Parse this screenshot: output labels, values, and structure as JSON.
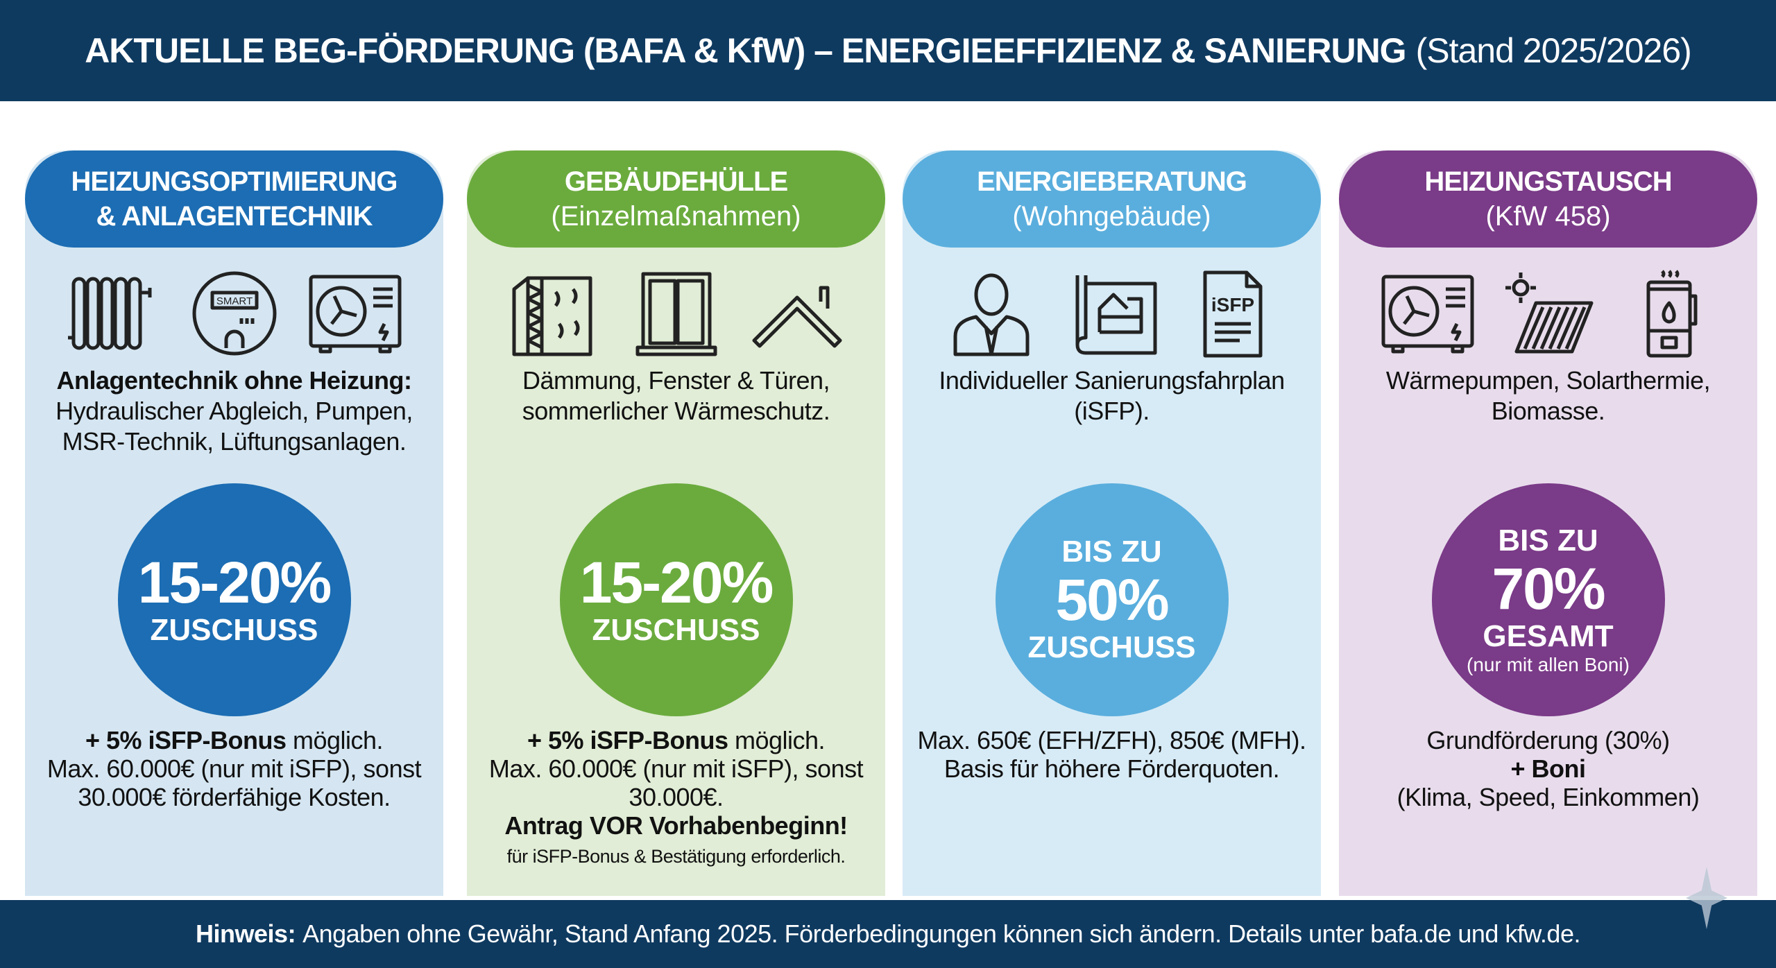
{
  "title": {
    "bold": "AKTUELLE BEG-FÖRDERUNG (BAFA & KfW) – ENERGIEEFFIZIENZ & SANIERUNG",
    "normal": "(Stand 2025/2026)"
  },
  "colors": {
    "navy": "#0f3a60",
    "blue": "#1c6db3",
    "green": "#6bab3e",
    "lightblue": "#5aaedd",
    "purple": "#7a3b88"
  },
  "columns": [
    {
      "title": "HEIZUNGSOPTIMIERUNG",
      "subtitle": "& ANLAGENTECHNIK",
      "icons": [
        "radiator-icon",
        "smart-meter-icon",
        "heat-pump-icon"
      ],
      "desc_bold": "Anlagentechnik ohne Heizung:",
      "desc": "Hydraulischer Abgleich, Pumpen, MSR-Technik, Lüftungsanlagen.",
      "badge": {
        "value": "15-20%",
        "label": "ZUSCHUSS"
      },
      "bottom_bold": "+ 5% iSFP-Bonus",
      "bottom_rest": " möglich.",
      "bottom": "Max. 60.000€ (nur mit iSFP), sonst 30.000€ förderfähige Kosten."
    },
    {
      "title": "GEBÄUDEHÜLLE",
      "subtitle": "(Einzelmaßnahmen)",
      "icons": [
        "insulation-icon",
        "window-icon",
        "roof-icon"
      ],
      "desc": "Dämmung, Fenster & Türen, sommerlicher Wärmeschutz.",
      "badge": {
        "value": "15-20%",
        "label": "ZUSCHUSS"
      },
      "bottom_bold": "+ 5% iSFP-Bonus",
      "bottom_rest": " möglich.",
      "bottom": "Max. 60.000€ (nur mit iSFP), sonst 30.000€.",
      "bottom_bold2": "Antrag VOR Vorhabenbeginn!",
      "bottom_tiny": "für iSFP-Bonus & Bestätigung erforderlich."
    },
    {
      "title": "ENERGIEBERATUNG",
      "subtitle": "(Wohngebäude)",
      "icons": [
        "consultant-icon",
        "floor-plan-icon",
        "isfp-document-icon"
      ],
      "icon_text": "iSFP",
      "desc": "Individueller Sanierungsfahrplan (iSFP).",
      "badge": {
        "prefix": "BIS ZU",
        "value": "50%",
        "label": "ZUSCHUSS"
      },
      "bottom": "Max. 650€ (EFH/ZFH), 850€ (MFH). Basis für höhere Förderquoten."
    },
    {
      "title": "HEIZUNGSTAUSCH",
      "subtitle": "(KfW 458)",
      "icons": [
        "heat-pump-icon",
        "solar-thermal-icon",
        "biomass-boiler-icon"
      ],
      "desc": "Wärmepumpen, Solarthermie, Biomasse.",
      "badge": {
        "prefix": "BIS ZU",
        "value": "70%",
        "label": "GESAMT",
        "note": "(nur mit allen Boni)"
      },
      "bottom": "Grundförderung (30%)",
      "bottom_bold": "+ Boni",
      "bottom2": "(Klima, Speed, Einkommen)"
    }
  ],
  "footer": {
    "bold": "Hinweis:",
    "text": "Angaben ohne Gewähr, Stand Anfang 2025. Förderbedingungen können sich ändern. Details unter bafa.de und kfw.de."
  }
}
